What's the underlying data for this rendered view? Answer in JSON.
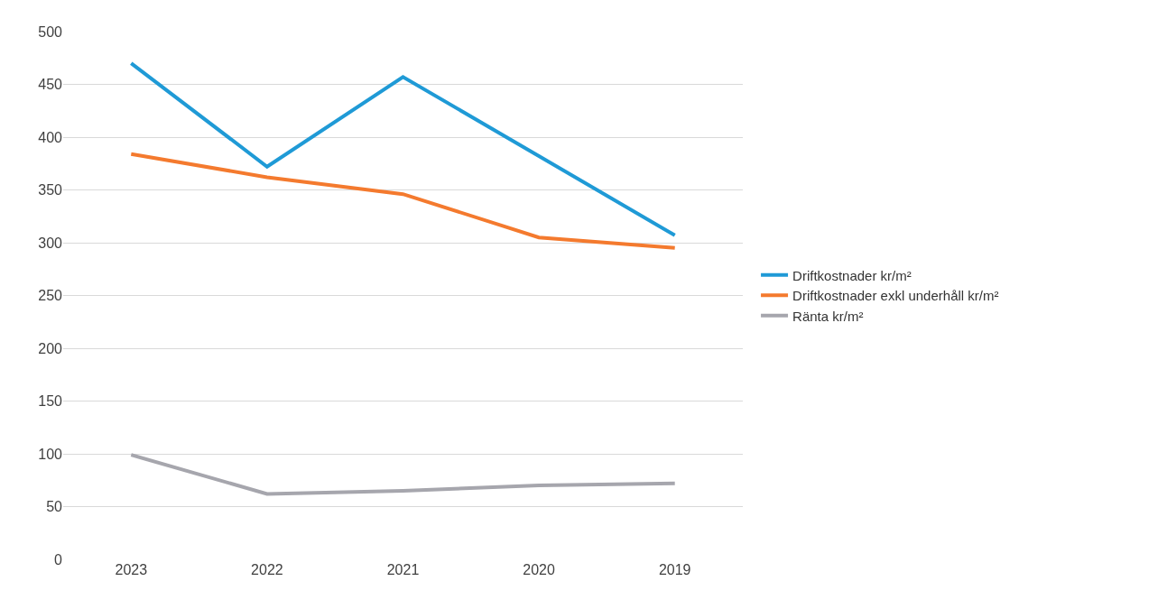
{
  "chart_data": {
    "type": "line",
    "categories": [
      "2023",
      "2022",
      "2021",
      "2020",
      "2019"
    ],
    "series": [
      {
        "name": "Driftkostnader kr/m²",
        "color": "#1f9ad6",
        "values": [
          470,
          372,
          457,
          382,
          307
        ]
      },
      {
        "name": "Driftkostnader exkl underhåll kr/m²",
        "color": "#f47a2e",
        "values": [
          384,
          362,
          346,
          305,
          295
        ]
      },
      {
        "name": "Ränta kr/m²",
        "color": "#a6a6ad",
        "values": [
          99,
          62,
          65,
          70,
          72
        ]
      }
    ],
    "ylim": [
      0,
      500
    ],
    "yticks": [
      0,
      50,
      100,
      150,
      200,
      250,
      300,
      350,
      400,
      450,
      500
    ],
    "grid": "y",
    "legend": "right",
    "marker": "none",
    "line_style": "solid"
  }
}
